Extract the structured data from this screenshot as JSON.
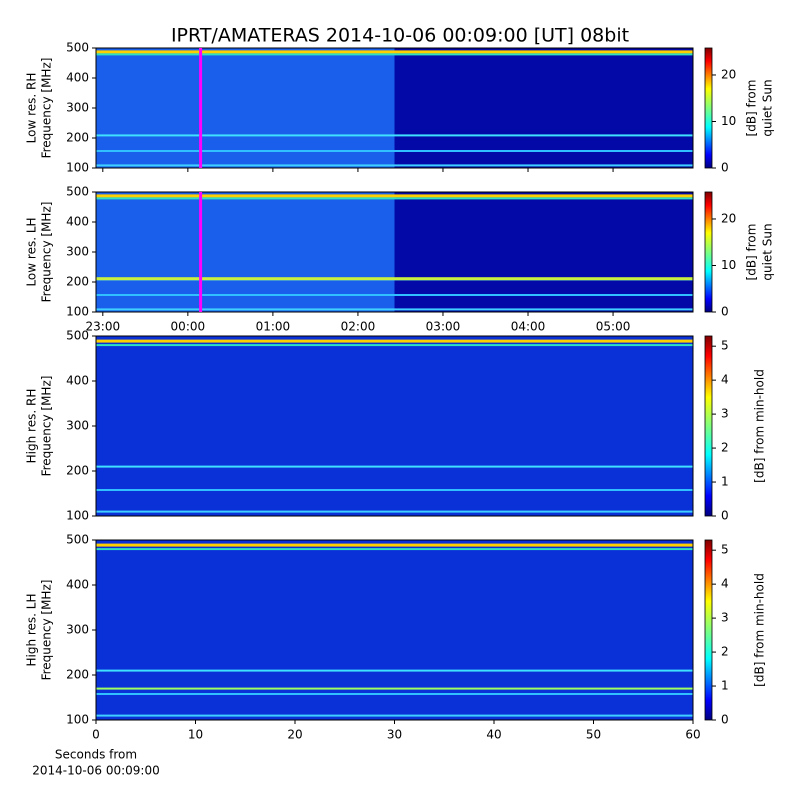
{
  "title": "IPRT/AMATERAS 2014-10-06 00:09:00 [UT]   08bit",
  "chart_data": [
    {
      "type": "heatmap",
      "ylabel": [
        "Low res. RH",
        "Frequency [MHz]"
      ],
      "ylim": [
        100,
        500
      ],
      "yticks": [
        100,
        200,
        300,
        400,
        500
      ],
      "xlim": [
        -1.08,
        5.94
      ],
      "marker_x": 0.15,
      "marker_color": "#ff00ff",
      "colorbar": {
        "label": [
          "[dB] from",
          "quiet Sun"
        ],
        "lim": [
          0,
          25.8
        ],
        "ticks": [
          0,
          10,
          20
        ]
      }
    },
    {
      "type": "heatmap",
      "ylabel": [
        "Low res. LH",
        "Frequency [MHz]"
      ],
      "ylim": [
        100,
        500
      ],
      "yticks": [
        100,
        200,
        300,
        400,
        500
      ],
      "xlim": [
        -1.08,
        5.94
      ],
      "marker_x": 0.15,
      "marker_color": "#ff00ff",
      "xticks": [
        {
          "value": -1,
          "label": "23:00"
        },
        {
          "value": 0,
          "label": "00:00"
        },
        {
          "value": 1,
          "label": "01:00"
        },
        {
          "value": 2,
          "label": "02:00"
        },
        {
          "value": 3,
          "label": "03:00"
        },
        {
          "value": 4,
          "label": "04:00"
        },
        {
          "value": 5,
          "label": "05:00"
        }
      ],
      "colorbar": {
        "label": [
          "[dB] from",
          "quiet Sun"
        ],
        "lim": [
          0,
          25.8
        ],
        "ticks": [
          0,
          10,
          20
        ]
      }
    },
    {
      "type": "heatmap",
      "ylabel": [
        "High res. RH",
        "Frequency [MHz]"
      ],
      "ylim": [
        100,
        500
      ],
      "yticks": [
        100,
        200,
        300,
        400,
        500
      ],
      "xlim": [
        0,
        60
      ],
      "colorbar": {
        "label": [
          "[dB] from min-hold"
        ],
        "lim": [
          0,
          5.3
        ],
        "ticks": [
          0,
          1,
          2,
          3,
          4,
          5
        ]
      }
    },
    {
      "type": "heatmap",
      "ylabel": [
        "High res. LH",
        "Frequency [MHz]"
      ],
      "ylim": [
        100,
        500
      ],
      "yticks": [
        100,
        200,
        300,
        400,
        500
      ],
      "xlim": [
        0,
        60
      ],
      "xticks": [
        0,
        10,
        20,
        30,
        40,
        50,
        60
      ],
      "xlabel": [
        "Seconds from",
        "2014-10-06 00:09:00"
      ],
      "colorbar": {
        "label": [
          "[dB] from min-hold"
        ],
        "lim": [
          0,
          5.3
        ],
        "ticks": [
          0,
          1,
          2,
          3,
          4,
          5
        ]
      }
    }
  ]
}
